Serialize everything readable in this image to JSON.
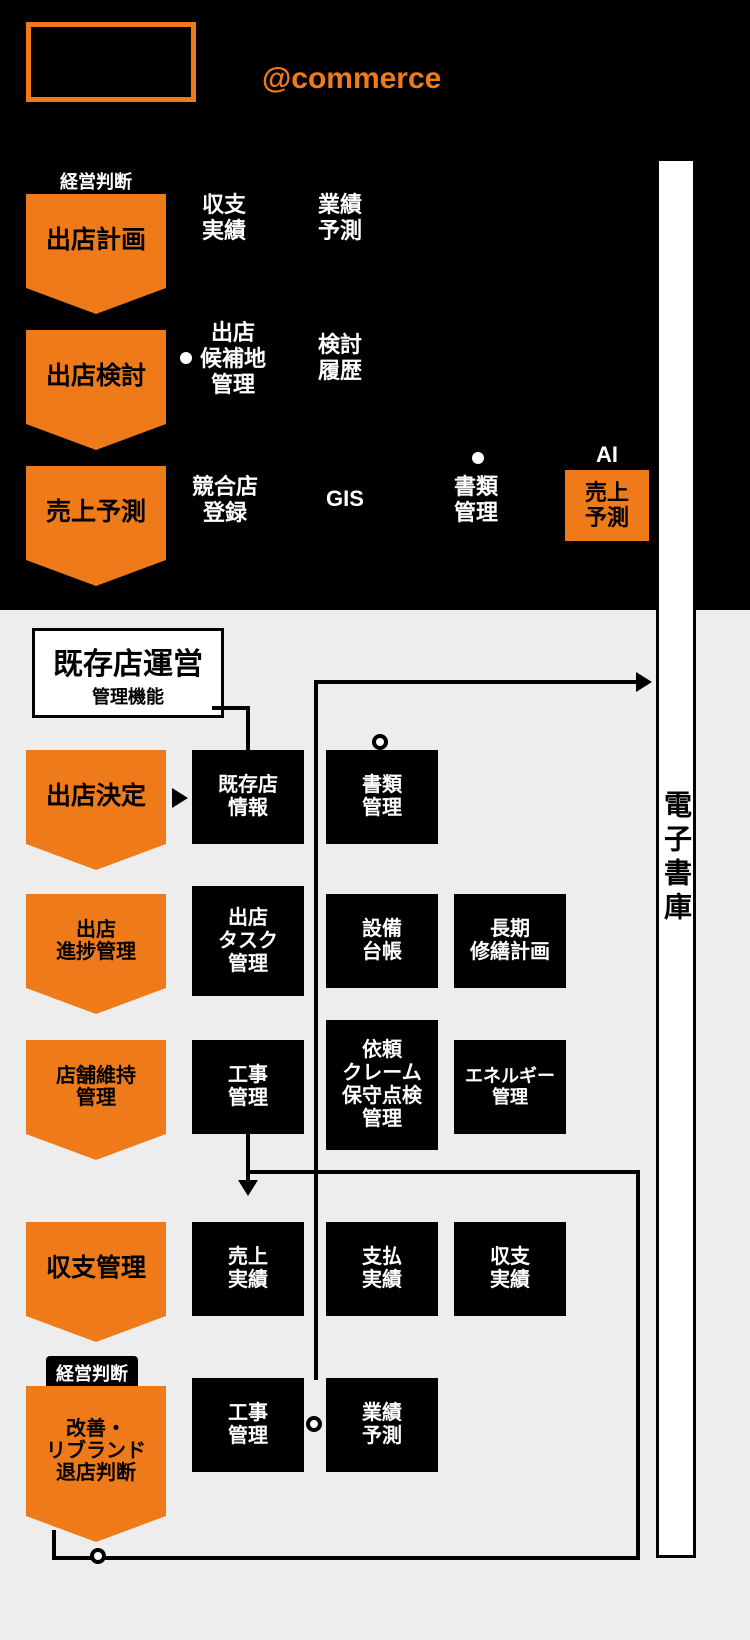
{
  "colors": {
    "orange": "#ef7a1a",
    "black": "#000000",
    "bg_lower": "#ededed",
    "white": "#ffffff"
  },
  "brand": "@commerce",
  "archive_label": "電子書庫",
  "top_steps": [
    {
      "pill": "経営判断",
      "label": "出店計画",
      "items": [
        "収支\n実績",
        "業績\n予測"
      ]
    },
    {
      "pill": null,
      "label": "出店検討",
      "items": [
        "出店\n候補地\n管理",
        "検討\n履歴"
      ]
    },
    {
      "pill": null,
      "label": "売上予測",
      "items": [
        "競合店\n登録",
        "GIS",
        "書類\n管理"
      ]
    }
  ],
  "ai": {
    "tab": "AI",
    "label": "売上\n予測"
  },
  "section": {
    "title": "既存店運営",
    "sub": "管理機能"
  },
  "lower_steps": [
    {
      "pill": null,
      "label": "出店決定",
      "cards": [
        "既存店\n情報",
        "書類\n管理"
      ]
    },
    {
      "pill": null,
      "label": "出店\n進捗管理",
      "cards": [
        "出店\nタスク\n管理",
        "設備\n台帳",
        "長期\n修繕計画"
      ]
    },
    {
      "pill": null,
      "label": "店舗維持\n管理",
      "cards": [
        "工事\n管理",
        "依頼\nクレーム\n保守点検\n管理",
        "エネルギー\n管理"
      ],
      "tall": true
    },
    {
      "pill": null,
      "label": "収支管理",
      "cards": [
        "売上\n実績",
        "支払\n実績",
        "収支\n実績"
      ]
    },
    {
      "pill": "経営判断",
      "label": "改善・\nリブランド\n退店判断",
      "cards": [
        "工事\n管理",
        "業績\n予測"
      ],
      "bigstep": true
    }
  ]
}
